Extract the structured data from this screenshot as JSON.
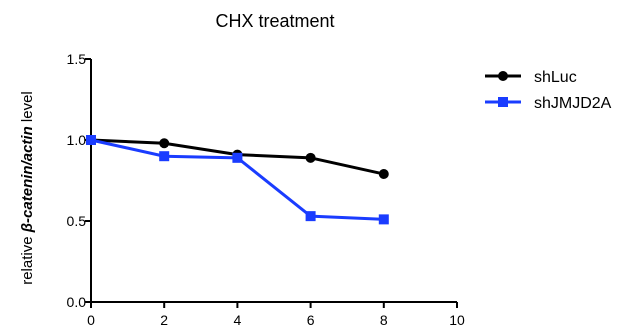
{
  "chart_data": {
    "type": "line",
    "title": "CHX treatment",
    "ylabel": {
      "prefix": "relative ",
      "emph": "β-catenin/actin",
      "suffix": " level"
    },
    "xlabel": "",
    "xlim": [
      0,
      10
    ],
    "ylim": [
      0,
      1.5
    ],
    "x_ticks": [
      0,
      2,
      4,
      6,
      8,
      10
    ],
    "x_tick_labels": [
      "0",
      "2",
      "4",
      "6",
      "8",
      "10"
    ],
    "y_ticks": [
      0,
      0.5,
      1.0,
      1.5
    ],
    "y_tick_labels": [
      "0.0",
      "0.5",
      "1.0",
      "1.5"
    ],
    "grid": false,
    "legend_position": "top-right",
    "series": [
      {
        "name": "shLuc",
        "color": "#000000",
        "marker": "circle",
        "x": [
          0,
          2,
          4,
          6,
          8
        ],
        "y": [
          1.0,
          0.98,
          0.91,
          0.89,
          0.79
        ]
      },
      {
        "name": "shJMJD2A",
        "color": "#1a3cff",
        "marker": "square",
        "x": [
          0,
          2,
          4,
          6,
          8
        ],
        "y": [
          1.0,
          0.9,
          0.89,
          0.53,
          0.51
        ]
      }
    ]
  }
}
